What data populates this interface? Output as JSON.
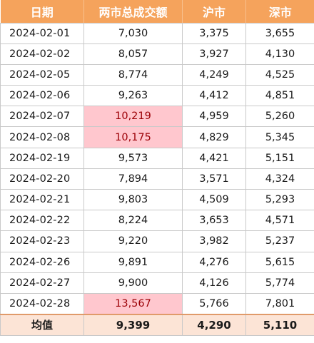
{
  "table": {
    "headers": {
      "date": "日期",
      "total": "两市总成交额",
      "sh": "沪市",
      "sz": "深市"
    },
    "rows": [
      {
        "date": "2024-02-01",
        "total": "7,030",
        "sh": "3,375",
        "sz": "3,655",
        "total_highlight": false
      },
      {
        "date": "2024-02-02",
        "total": "8,057",
        "sh": "3,927",
        "sz": "4,130",
        "total_highlight": false
      },
      {
        "date": "2024-02-05",
        "total": "8,774",
        "sh": "4,249",
        "sz": "4,525",
        "total_highlight": false
      },
      {
        "date": "2024-02-06",
        "total": "9,263",
        "sh": "4,412",
        "sz": "4,851",
        "total_highlight": false
      },
      {
        "date": "2024-02-07",
        "total": "10,219",
        "sh": "4,959",
        "sz": "5,260",
        "total_highlight": true
      },
      {
        "date": "2024-02-08",
        "total": "10,175",
        "sh": "4,829",
        "sz": "5,345",
        "total_highlight": true
      },
      {
        "date": "2024-02-19",
        "total": "9,573",
        "sh": "4,421",
        "sz": "5,151",
        "total_highlight": false
      },
      {
        "date": "2024-02-20",
        "total": "7,894",
        "sh": "3,571",
        "sz": "4,324",
        "total_highlight": false
      },
      {
        "date": "2024-02-21",
        "total": "9,803",
        "sh": "4,509",
        "sz": "5,293",
        "total_highlight": false
      },
      {
        "date": "2024-02-22",
        "total": "8,224",
        "sh": "3,653",
        "sz": "4,571",
        "total_highlight": false
      },
      {
        "date": "2024-02-23",
        "total": "9,220",
        "sh": "3,982",
        "sz": "5,237",
        "total_highlight": false
      },
      {
        "date": "2024-02-26",
        "total": "9,891",
        "sh": "4,276",
        "sz": "5,615",
        "total_highlight": false
      },
      {
        "date": "2024-02-27",
        "total": "9,900",
        "sh": "4,126",
        "sz": "5,774",
        "total_highlight": false
      },
      {
        "date": "2024-02-28",
        "total": "13,567",
        "sh": "5,766",
        "sz": "7,801",
        "total_highlight": true
      }
    ],
    "footer": {
      "label": "均值",
      "total": "9,399",
      "sh": "4,290",
      "sz": "5,110"
    }
  },
  "colors": {
    "header_bg": "#f5a35c",
    "header_text": "#ffffff",
    "highlight_bg": "#ffc7ce",
    "highlight_text": "#9c0006",
    "footer_bg": "#fce4d6"
  }
}
